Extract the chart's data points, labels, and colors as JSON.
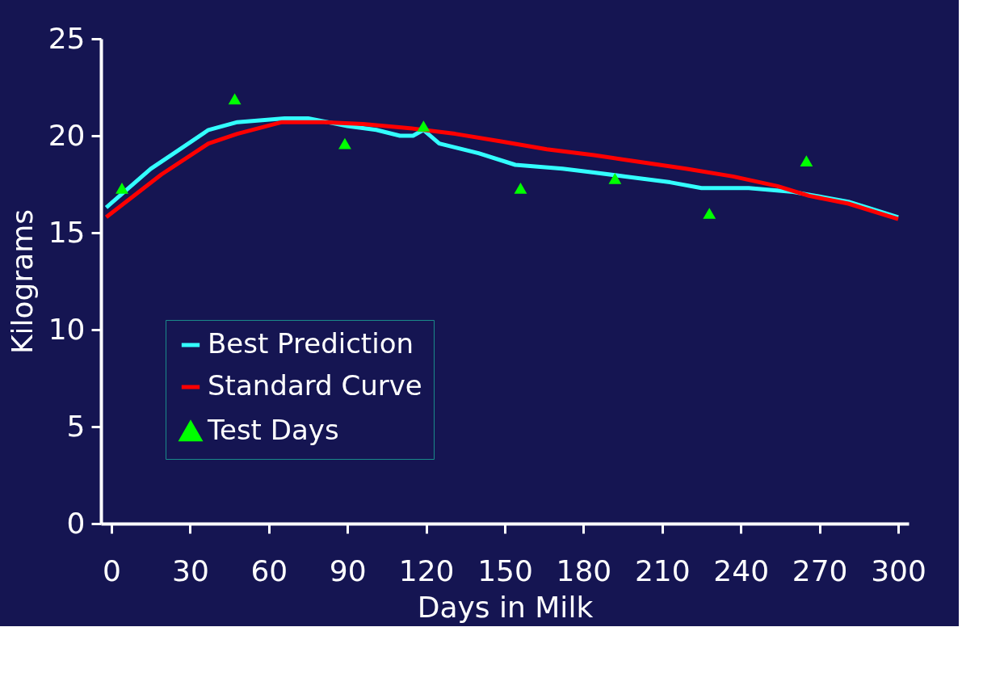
{
  "chart_data": {
    "type": "line",
    "xlabel": "Days in Milk",
    "ylabel": "Kilograms",
    "xlim": [
      -4,
      304
    ],
    "xticks": [
      0,
      30,
      60,
      90,
      120,
      150,
      180,
      210,
      240,
      270,
      300
    ],
    "ylim": [
      0,
      25
    ],
    "yticks": [
      0,
      5,
      10,
      15,
      20,
      25
    ],
    "grid": false,
    "legend": "bottom left",
    "series": [
      {
        "name": "Best Prediction",
        "color": "#33ffff",
        "type": "line",
        "x": [
          -2,
          15,
          25,
          37,
          48,
          66,
          75,
          90,
          101,
          110,
          115,
          119,
          125,
          140,
          154,
          172,
          184,
          196,
          213,
          225,
          243,
          260,
          281,
          300
        ],
        "values": [
          16.3,
          18.3,
          19.2,
          20.3,
          20.7,
          20.9,
          20.9,
          20.5,
          20.3,
          20.0,
          20.0,
          20.3,
          19.6,
          19.1,
          18.5,
          18.3,
          18.1,
          17.9,
          17.6,
          17.3,
          17.3,
          17.1,
          16.6,
          15.8
        ]
      },
      {
        "name": "Standard Curve",
        "color": "#ff0000",
        "type": "line",
        "x": [
          -2,
          19,
          37,
          48,
          65,
          81,
          96,
          113,
          131,
          149,
          166,
          184,
          199,
          219,
          237,
          254,
          266,
          281,
          300
        ],
        "values": [
          15.8,
          18.0,
          19.6,
          20.1,
          20.7,
          20.7,
          20.6,
          20.4,
          20.1,
          19.7,
          19.3,
          19.0,
          18.7,
          18.3,
          17.9,
          17.4,
          16.9,
          16.5,
          15.7
        ]
      },
      {
        "name": "Test Days",
        "color": "#00ff00",
        "type": "scatter",
        "marker": "triangle",
        "x": [
          4,
          47,
          89,
          119,
          156,
          192,
          228,
          265
        ],
        "values": [
          17.3,
          21.9,
          19.6,
          20.5,
          17.3,
          17.8,
          16.0,
          18.7
        ]
      }
    ]
  }
}
